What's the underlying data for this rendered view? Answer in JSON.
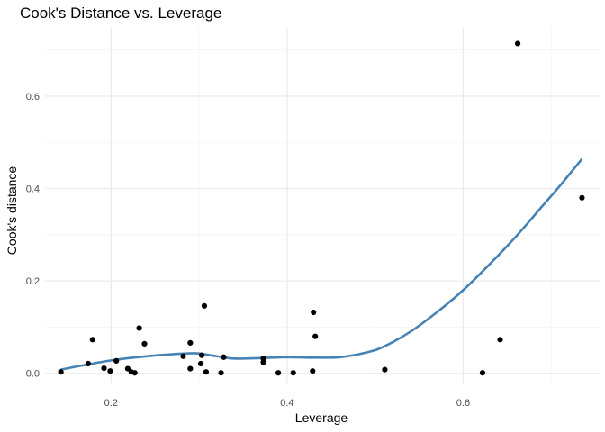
{
  "chart_data": {
    "type": "scatter",
    "title": "Cook's Distance vs. Leverage",
    "xlabel": "Leverage",
    "ylabel": "Cook's distance",
    "xlim": [
      0.125,
      0.755
    ],
    "ylim": [
      -0.02,
      0.748
    ],
    "x_ticks": [
      0.2,
      0.4,
      0.6
    ],
    "x_tick_labels": [
      "0.2",
      "0.4",
      "0.6"
    ],
    "y_ticks": [
      0.0,
      0.2,
      0.4,
      0.6
    ],
    "y_tick_labels": [
      "0.0",
      "0.2",
      "0.4",
      "0.6"
    ],
    "grid": true,
    "points": [
      {
        "x": 0.143,
        "y": 0.003
      },
      {
        "x": 0.174,
        "y": 0.021
      },
      {
        "x": 0.179,
        "y": 0.073
      },
      {
        "x": 0.192,
        "y": 0.011
      },
      {
        "x": 0.199,
        "y": 0.005
      },
      {
        "x": 0.206,
        "y": 0.027
      },
      {
        "x": 0.219,
        "y": 0.01
      },
      {
        "x": 0.223,
        "y": 0.003
      },
      {
        "x": 0.227,
        "y": 0.001
      },
      {
        "x": 0.232,
        "y": 0.098
      },
      {
        "x": 0.238,
        "y": 0.064
      },
      {
        "x": 0.282,
        "y": 0.037
      },
      {
        "x": 0.29,
        "y": 0.01
      },
      {
        "x": 0.29,
        "y": 0.066
      },
      {
        "x": 0.302,
        "y": 0.021
      },
      {
        "x": 0.303,
        "y": 0.039
      },
      {
        "x": 0.306,
        "y": 0.146
      },
      {
        "x": 0.308,
        "y": 0.003
      },
      {
        "x": 0.325,
        "y": 0.001
      },
      {
        "x": 0.328,
        "y": 0.035
      },
      {
        "x": 0.373,
        "y": 0.032
      },
      {
        "x": 0.373,
        "y": 0.024
      },
      {
        "x": 0.39,
        "y": 0.001
      },
      {
        "x": 0.407,
        "y": 0.001
      },
      {
        "x": 0.429,
        "y": 0.005
      },
      {
        "x": 0.43,
        "y": 0.132
      },
      {
        "x": 0.432,
        "y": 0.08
      },
      {
        "x": 0.511,
        "y": 0.008
      },
      {
        "x": 0.622,
        "y": 0.001
      },
      {
        "x": 0.642,
        "y": 0.073
      },
      {
        "x": 0.662,
        "y": 0.714
      },
      {
        "x": 0.735,
        "y": 0.38
      }
    ],
    "smooth_line": {
      "color": "#4682b4",
      "points": [
        {
          "x": 0.143,
          "y": 0.008
        },
        {
          "x": 0.17,
          "y": 0.018
        },
        {
          "x": 0.2,
          "y": 0.028
        },
        {
          "x": 0.23,
          "y": 0.035
        },
        {
          "x": 0.26,
          "y": 0.04
        },
        {
          "x": 0.285,
          "y": 0.043
        },
        {
          "x": 0.3,
          "y": 0.043
        },
        {
          "x": 0.32,
          "y": 0.037
        },
        {
          "x": 0.34,
          "y": 0.032
        },
        {
          "x": 0.37,
          "y": 0.033
        },
        {
          "x": 0.4,
          "y": 0.035
        },
        {
          "x": 0.43,
          "y": 0.034
        },
        {
          "x": 0.46,
          "y": 0.035
        },
        {
          "x": 0.49,
          "y": 0.045
        },
        {
          "x": 0.51,
          "y": 0.058
        },
        {
          "x": 0.54,
          "y": 0.09
        },
        {
          "x": 0.57,
          "y": 0.132
        },
        {
          "x": 0.6,
          "y": 0.18
        },
        {
          "x": 0.63,
          "y": 0.236
        },
        {
          "x": 0.66,
          "y": 0.296
        },
        {
          "x": 0.69,
          "y": 0.362
        },
        {
          "x": 0.71,
          "y": 0.406
        },
        {
          "x": 0.735,
          "y": 0.464
        }
      ]
    },
    "colors": {
      "points": "#000000",
      "line": "#4682b4",
      "grid_major": "#ebebeb",
      "grid_minor": "#f4f4f4",
      "tick_text": "#4d4d4d"
    }
  }
}
